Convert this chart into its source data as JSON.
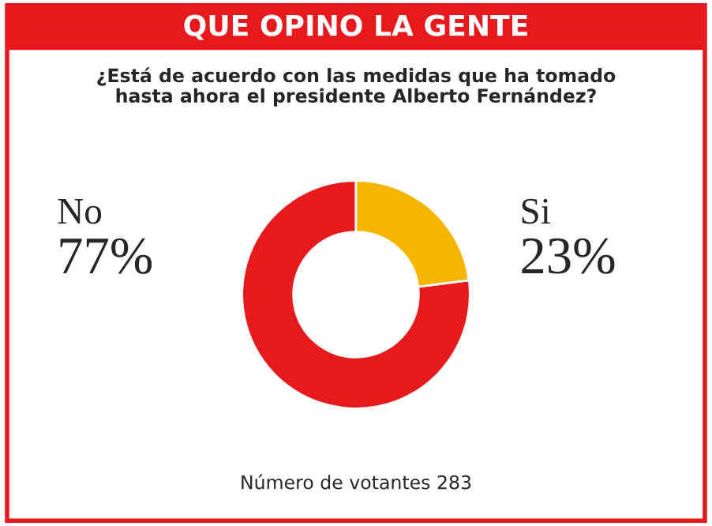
{
  "chart_data": {
    "type": "donut",
    "title": "QUE OPINO LA GENTE",
    "subtitle": "¿Está de acuerdo con las medidas que ha tomado\nhasta ahora el presidente Alberto Fernández?",
    "categories": [
      "No",
      "Si"
    ],
    "values": [
      77,
      23
    ],
    "value_labels": [
      "77%",
      "23%"
    ],
    "colors": [
      "#e8191c",
      "#f7b500"
    ],
    "annotations": [
      "Número de votantes 283"
    ]
  }
}
